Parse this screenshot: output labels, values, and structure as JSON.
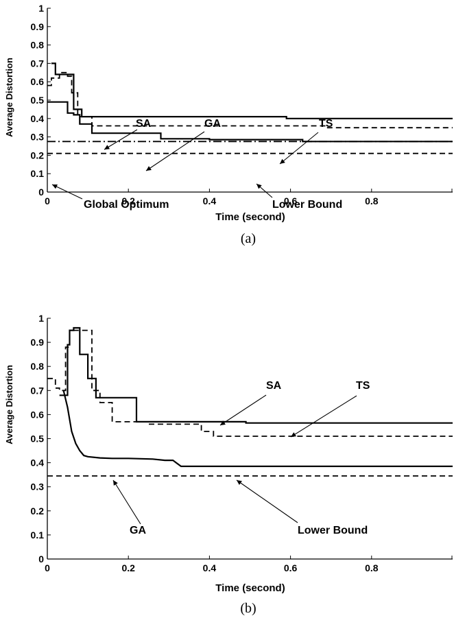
{
  "chart_data": [
    {
      "type": "line",
      "caption": "(a)",
      "xlabel": "Time (second)",
      "ylabel": "Average Distortion",
      "xlim": [
        0,
        1
      ],
      "ylim": [
        0,
        1
      ],
      "xticks": [
        "0",
        "0.2",
        "0.4",
        "0.6",
        "0.8"
      ],
      "yticks": [
        "0",
        "0.1",
        "0.2",
        "0.3",
        "0.4",
        "0.5",
        "0.6",
        "0.7",
        "0.8",
        "0.9",
        "1"
      ],
      "grid": false,
      "series": [
        {
          "name": "SA",
          "style": "solid",
          "step": true,
          "x": [
            0.01,
            0.02,
            0.06,
            0.065,
            0.075,
            0.085,
            0.1,
            0.56,
            0.59,
            1.0
          ],
          "y": [
            0.7,
            0.64,
            0.64,
            0.45,
            0.45,
            0.41,
            0.41,
            0.41,
            0.4,
            0.4
          ]
        },
        {
          "name": "TS",
          "style": "dashed",
          "step": true,
          "x": [
            0.0,
            0.01,
            0.03,
            0.05,
            0.06,
            0.075,
            0.09,
            0.11,
            0.69,
            1.0
          ],
          "y": [
            0.58,
            0.62,
            0.65,
            0.63,
            0.54,
            0.41,
            0.41,
            0.36,
            0.35,
            0.35
          ]
        },
        {
          "name": "GA",
          "style": "solid",
          "step": true,
          "x": [
            0.0,
            0.04,
            0.05,
            0.065,
            0.08,
            0.11,
            0.26,
            0.28,
            0.38,
            0.4,
            0.61,
            0.63,
            1.0
          ],
          "y": [
            0.49,
            0.49,
            0.43,
            0.42,
            0.37,
            0.32,
            0.32,
            0.29,
            0.29,
            0.285,
            0.285,
            0.275,
            0.275
          ]
        },
        {
          "name": "Global Optimum",
          "style": "dashdot",
          "x": [
            0,
            1
          ],
          "y": [
            0.275,
            0.275
          ]
        },
        {
          "name": "Lower Bound",
          "style": "dashed",
          "x": [
            0,
            1
          ],
          "y": [
            0.21,
            0.21
          ]
        }
      ],
      "annotations": [
        {
          "text": "SA"
        },
        {
          "text": "GA"
        },
        {
          "text": "TS"
        },
        {
          "text": "Global Optimum"
        },
        {
          "text": "Lower Bound"
        }
      ]
    },
    {
      "type": "line",
      "caption": "(b)",
      "xlabel": "Time (second)",
      "ylabel": "Average Distortion",
      "xlim": [
        0,
        1
      ],
      "ylim": [
        0,
        1
      ],
      "xticks": [
        "0",
        "0.2",
        "0.4",
        "0.6",
        "0.8"
      ],
      "yticks": [
        "0",
        "0.1",
        "0.2",
        "0.3",
        "0.4",
        "0.5",
        "0.6",
        "0.7",
        "0.8",
        "0.9",
        "1"
      ],
      "grid": false,
      "series": [
        {
          "name": "SA",
          "style": "solid",
          "step": true,
          "x": [
            0.03,
            0.04,
            0.05,
            0.055,
            0.065,
            0.08,
            0.1,
            0.12,
            0.16,
            0.22,
            0.49,
            1.0
          ],
          "y": [
            0.68,
            0.68,
            0.89,
            0.95,
            0.96,
            0.85,
            0.75,
            0.67,
            0.67,
            0.57,
            0.565,
            0.565
          ]
        },
        {
          "name": "TS",
          "style": "dashed",
          "step": true,
          "x": [
            0.0,
            0.02,
            0.03,
            0.045,
            0.055,
            0.07,
            0.11,
            0.13,
            0.16,
            0.25,
            0.31,
            0.38,
            0.41,
            1.0
          ],
          "y": [
            0.75,
            0.71,
            0.7,
            0.88,
            0.95,
            0.95,
            0.7,
            0.65,
            0.57,
            0.56,
            0.56,
            0.53,
            0.51,
            0.51
          ]
        },
        {
          "name": "GA",
          "style": "solid",
          "curve": true,
          "x": [
            0.04,
            0.05,
            0.06,
            0.07,
            0.08,
            0.09,
            0.1,
            0.13,
            0.16,
            0.2,
            0.26,
            0.29,
            0.31,
            0.33,
            1.0
          ],
          "y": [
            0.7,
            0.63,
            0.53,
            0.48,
            0.45,
            0.43,
            0.425,
            0.42,
            0.418,
            0.418,
            0.415,
            0.41,
            0.41,
            0.385,
            0.385
          ]
        },
        {
          "name": "Lower Bound",
          "style": "dashed",
          "x": [
            0,
            1
          ],
          "y": [
            0.345,
            0.345
          ]
        }
      ],
      "annotations": [
        {
          "text": "SA"
        },
        {
          "text": "TS"
        },
        {
          "text": "GA"
        },
        {
          "text": "Lower Bound"
        }
      ]
    }
  ]
}
